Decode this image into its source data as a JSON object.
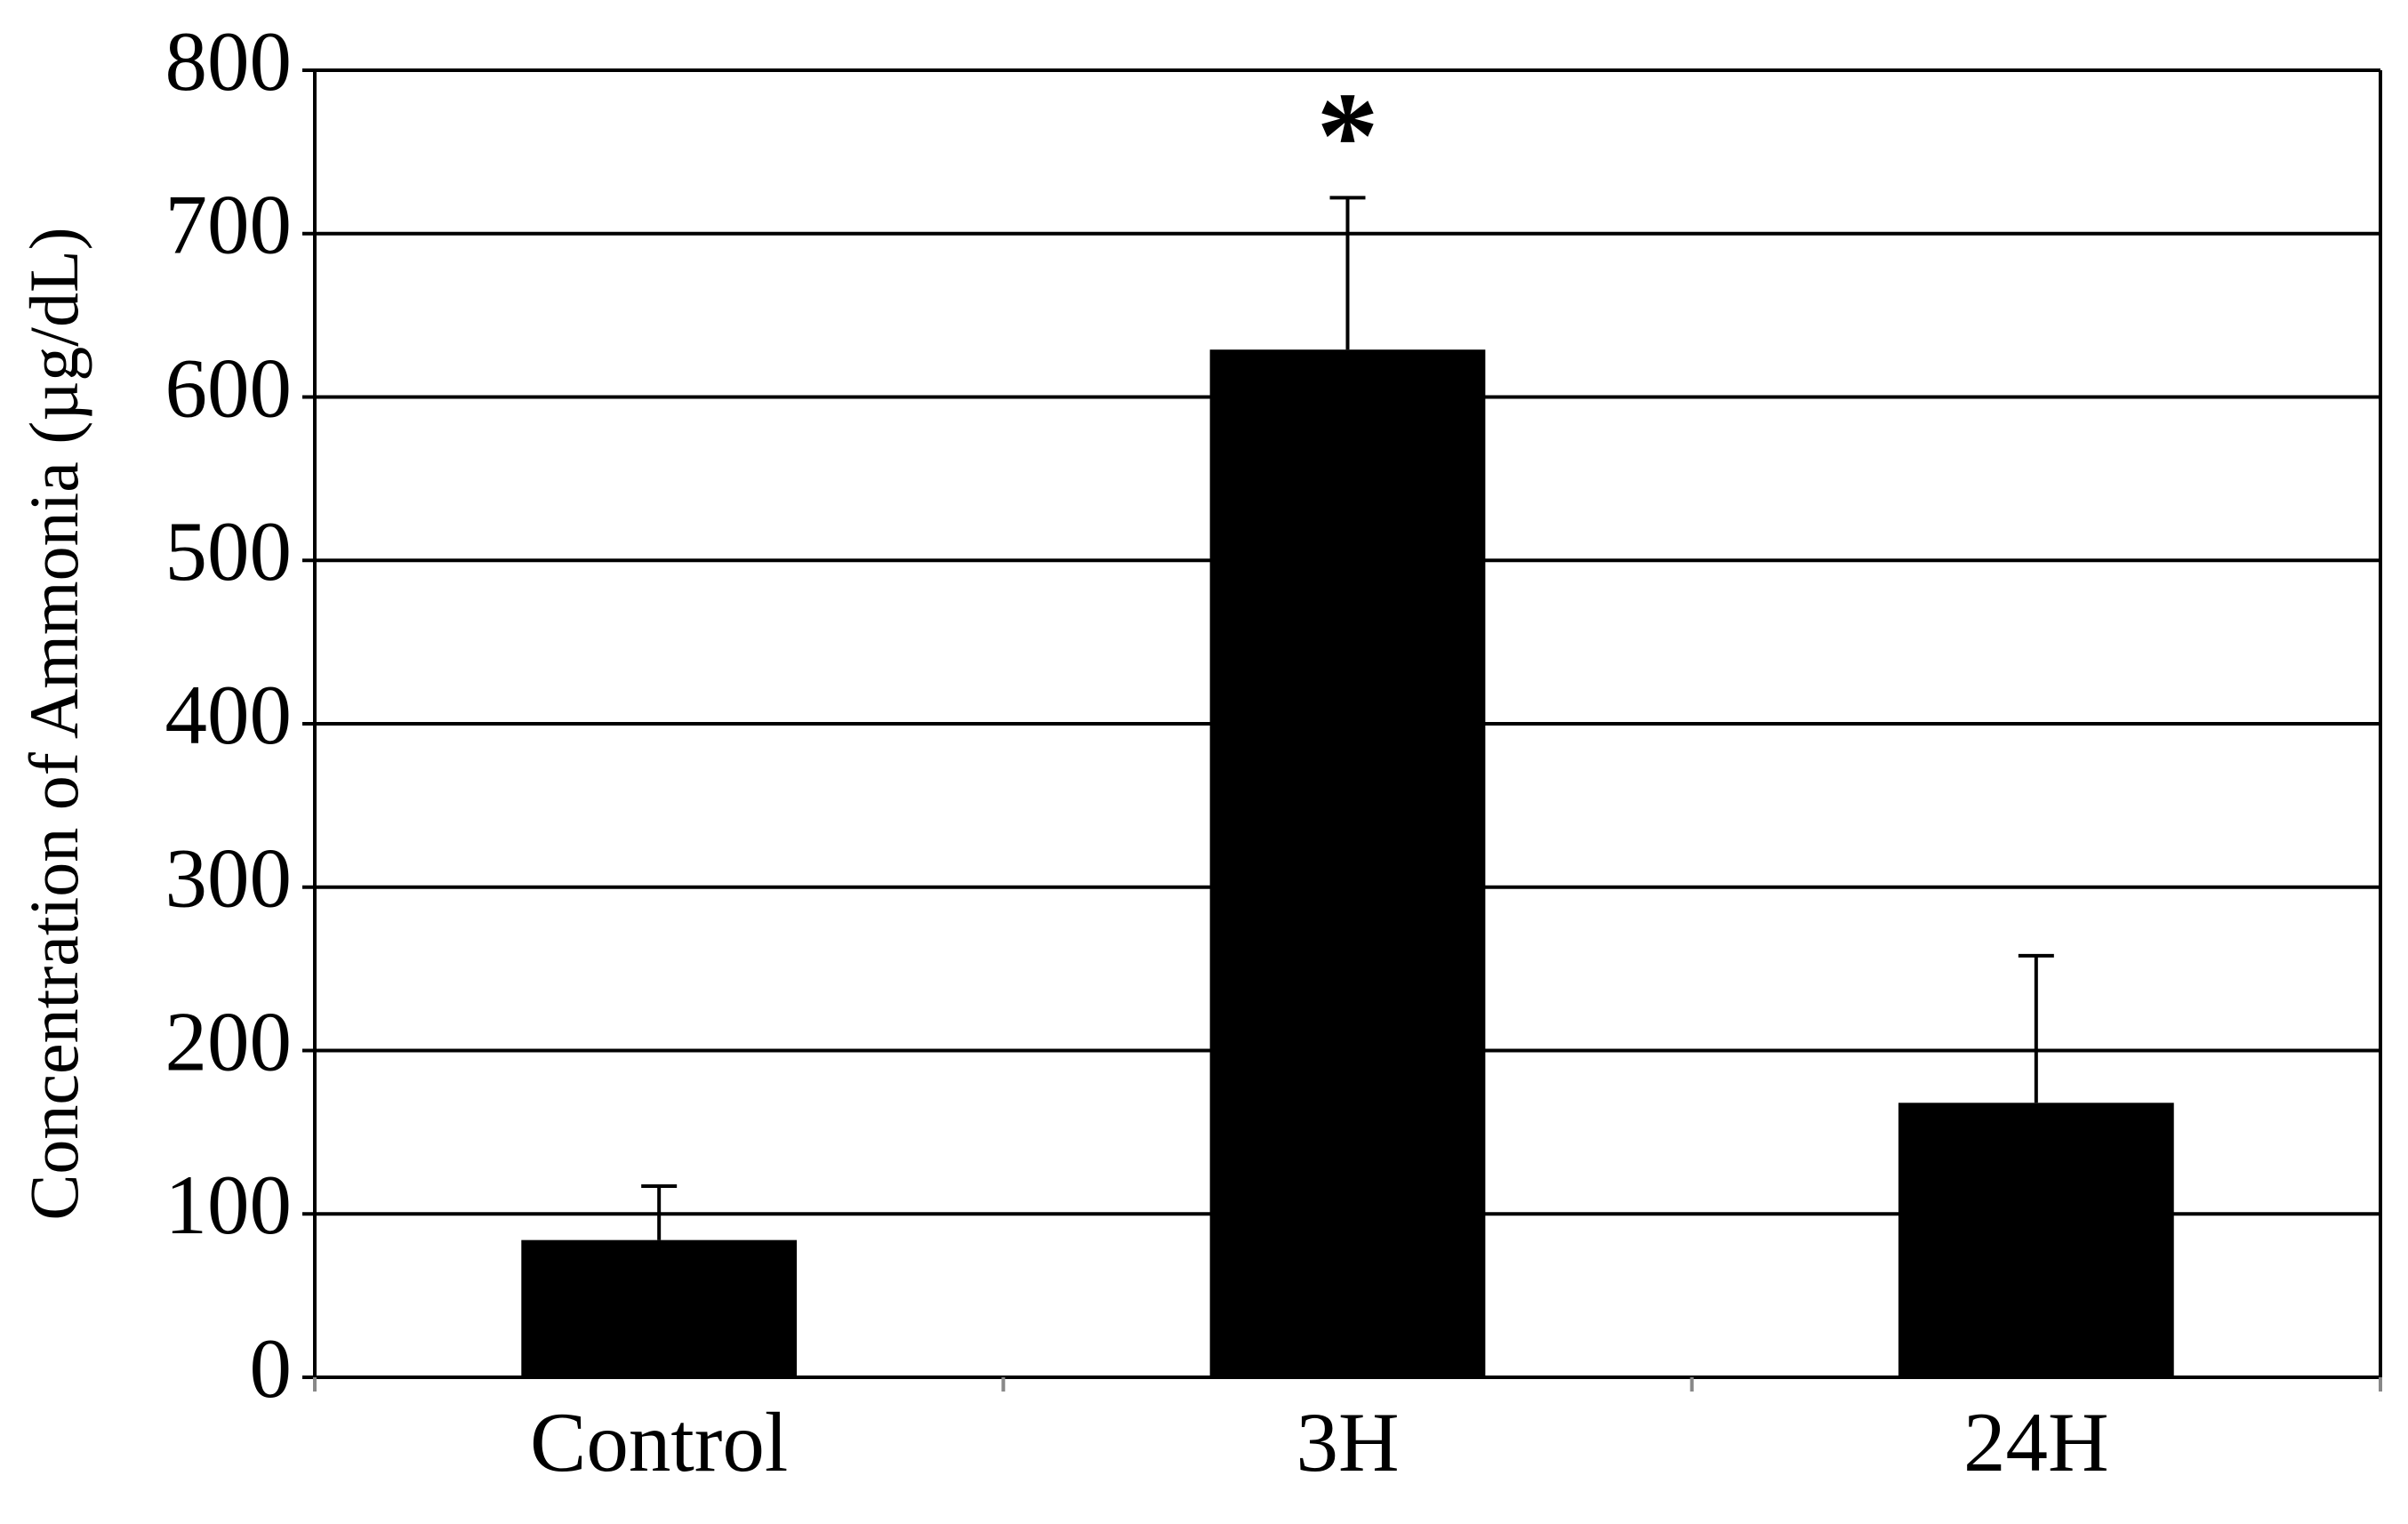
{
  "chart_data": {
    "type": "bar",
    "y_label": "Concentration of Ammonia (µg/dL)",
    "categories": [
      "Control",
      "3H",
      "24H"
    ],
    "series": [
      {
        "color": "#000000",
        "values": [
          84,
          629,
          168
        ],
        "errors": [
          33,
          93,
          90
        ]
      }
    ],
    "ylim": [
      0,
      800
    ],
    "yticks": [
      0,
      100,
      200,
      300,
      400,
      500,
      600,
      700,
      800
    ],
    "grid": true,
    "annotations": [
      {
        "text": "*",
        "category": "3H"
      }
    ]
  }
}
